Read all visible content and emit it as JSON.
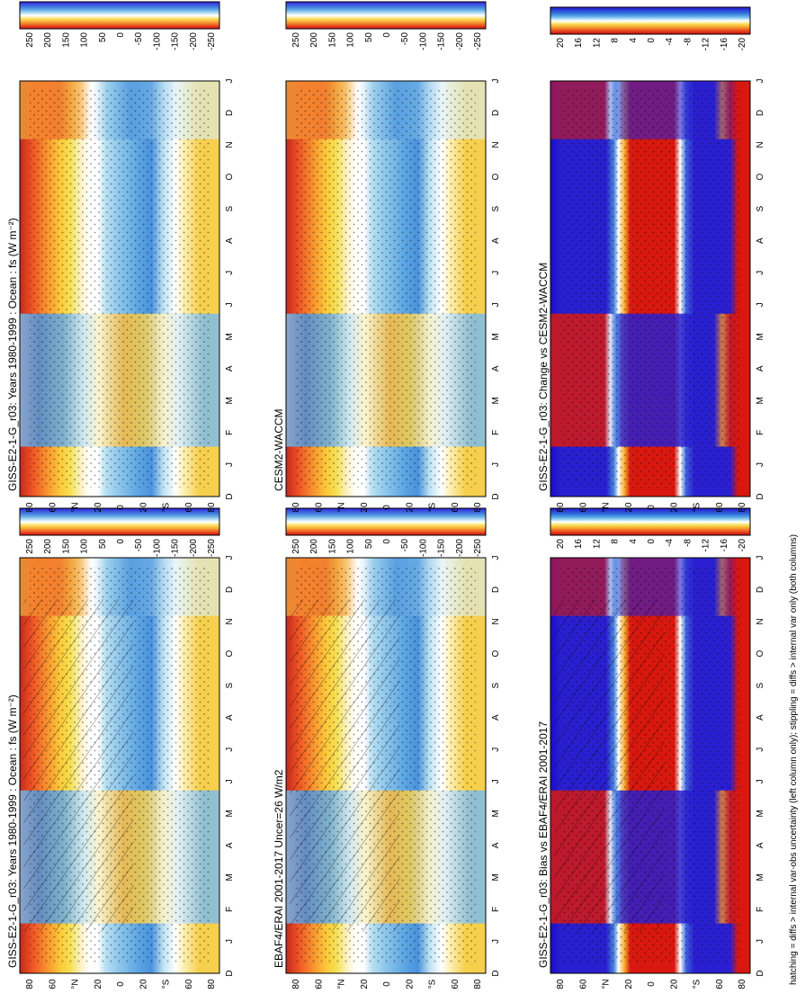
{
  "figure": {
    "footer": "hatching = diffs > internal var-obs uncertainty (left column only); stippling = diffs > internal var only (both columns)"
  },
  "chart_data": [
    {
      "type": "heatmap",
      "title": "GISS-E2-1-G_r03: Years 1980-1999 : Ocean : fs (W m⁻²)",
      "x_tick_labels": [
        "D",
        "J",
        "F",
        "M",
        "A",
        "M",
        "J",
        "J",
        "A",
        "S",
        "O",
        "N",
        "D",
        "J"
      ],
      "y_tick_labels": [
        "80",
        "60",
        "°N",
        "20",
        "0",
        "20",
        "°S",
        "60",
        "80"
      ],
      "colorbar": {
        "labels": [
          "250",
          "200",
          "150",
          "100",
          "50",
          "0",
          "-50",
          "-100",
          "-150",
          "-200",
          "-250"
        ],
        "range": [
          -275,
          275
        ]
      },
      "overlays": {
        "hatching": true,
        "stippling": true
      }
    },
    {
      "type": "heatmap",
      "title": "GISS-E2-1-G_r03: Years 1980-1999 : Ocean : fs (W m⁻²)",
      "x_tick_labels": [
        "D",
        "J",
        "F",
        "M",
        "A",
        "M",
        "J",
        "J",
        "A",
        "S",
        "O",
        "N",
        "D",
        "J"
      ],
      "y_tick_labels": [
        "80",
        "60",
        "°N",
        "20",
        "0",
        "20",
        "°S",
        "60",
        "80"
      ],
      "colorbar": {
        "labels": [
          "250",
          "200",
          "150",
          "100",
          "50",
          "0",
          "-50",
          "-100",
          "-150",
          "-200",
          "-250"
        ],
        "range": [
          -275,
          275
        ]
      },
      "overlays": {
        "hatching": false,
        "stippling": true
      }
    },
    {
      "type": "heatmap",
      "title": "EBAF4/ERAI 2001-2017 Uncer=26 W/m2",
      "x_tick_labels": [
        "D",
        "J",
        "F",
        "M",
        "A",
        "M",
        "J",
        "J",
        "A",
        "S",
        "O",
        "N",
        "D",
        "J"
      ],
      "y_tick_labels": [
        "80",
        "60",
        "°N",
        "20",
        "0",
        "20",
        "°S",
        "60",
        "80"
      ],
      "colorbar": {
        "labels": [
          "250",
          "200",
          "150",
          "100",
          "50",
          "0",
          "-50",
          "-100",
          "-150",
          "-200",
          "-250"
        ],
        "range": [
          -275,
          275
        ]
      },
      "overlays": {
        "hatching": true,
        "stippling": true
      }
    },
    {
      "type": "heatmap",
      "title": "CESM2-WACCM",
      "x_tick_labels": [
        "D",
        "J",
        "F",
        "M",
        "A",
        "M",
        "J",
        "J",
        "A",
        "S",
        "O",
        "N",
        "D",
        "J"
      ],
      "y_tick_labels": [
        "80",
        "60",
        "°N",
        "20",
        "0",
        "20",
        "°S",
        "60",
        "80"
      ],
      "colorbar": {
        "labels": [
          "250",
          "200",
          "150",
          "100",
          "50",
          "0",
          "-50",
          "-100",
          "-150",
          "-200",
          "-250"
        ],
        "range": [
          -275,
          275
        ]
      },
      "overlays": {
        "hatching": false,
        "stippling": true
      }
    },
    {
      "type": "heatmap",
      "title": "GISS-E2-1-G_r03: Bias vs EBAF4/ERAI 2001-2017",
      "x_tick_labels": [
        "D",
        "J",
        "F",
        "M",
        "A",
        "M",
        "J",
        "J",
        "A",
        "S",
        "O",
        "N",
        "D",
        "J"
      ],
      "y_tick_labels": [
        "80",
        "60",
        "°N",
        "20",
        "0",
        "20",
        "°S",
        "60",
        "80"
      ],
      "colorbar": {
        "labels": [
          "20",
          "16",
          "12",
          "8",
          "4",
          "0",
          "-4",
          "-8",
          "-12",
          "-16",
          "-20"
        ],
        "range": [
          -22,
          22
        ]
      },
      "overlays": {
        "hatching": true,
        "stippling": true
      }
    },
    {
      "type": "heatmap",
      "title": "GISS-E2-1-G_r03: Change vs CESM2-WACCM",
      "x_tick_labels": [
        "D",
        "J",
        "F",
        "M",
        "A",
        "M",
        "J",
        "J",
        "A",
        "S",
        "O",
        "N",
        "D",
        "J"
      ],
      "y_tick_labels": [
        "80",
        "60",
        "°N",
        "20",
        "0",
        "20",
        "°S",
        "60",
        "80"
      ],
      "colorbar": {
        "labels": [
          "20",
          "16",
          "12",
          "8",
          "4",
          "0",
          "-4",
          "-8",
          "-12",
          "-16",
          "-20"
        ],
        "range": [
          -22,
          22
        ]
      },
      "overlays": {
        "hatching": false,
        "stippling": true
      }
    }
  ]
}
